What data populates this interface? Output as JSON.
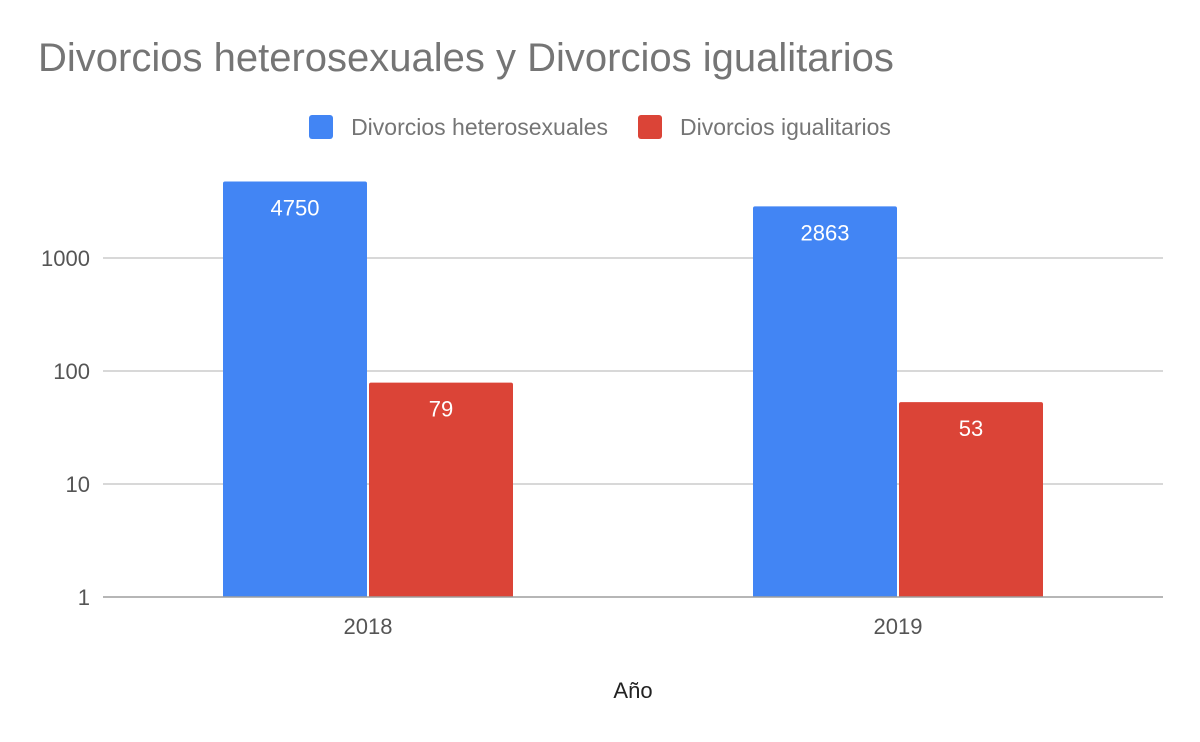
{
  "colors": {
    "series_1": "#4285f4",
    "series_2": "#db4437",
    "grid": "#cccccc",
    "baseline": "#9e9e9e"
  },
  "chart_data": {
    "type": "bar",
    "title": "Divorcios heterosexuales y Divorcios igualitarios",
    "xlabel": "Año",
    "ylabel": "",
    "yscale": "log",
    "ylim": [
      1,
      10000
    ],
    "yticks": [
      {
        "value": 1,
        "label": "1"
      },
      {
        "value": 10,
        "label": "10"
      },
      {
        "value": 100,
        "label": "100"
      },
      {
        "value": 1000,
        "label": "1000"
      }
    ],
    "categories": [
      "2018",
      "2019"
    ],
    "series": [
      {
        "name": "Divorcios heterosexuales",
        "values": [
          4750,
          2863
        ],
        "labels": [
          "4750",
          "2863"
        ]
      },
      {
        "name": "Divorcios igualitarios",
        "values": [
          79,
          53
        ],
        "labels": [
          "79",
          "53"
        ]
      }
    ],
    "grid": true,
    "legend_position": "top"
  }
}
